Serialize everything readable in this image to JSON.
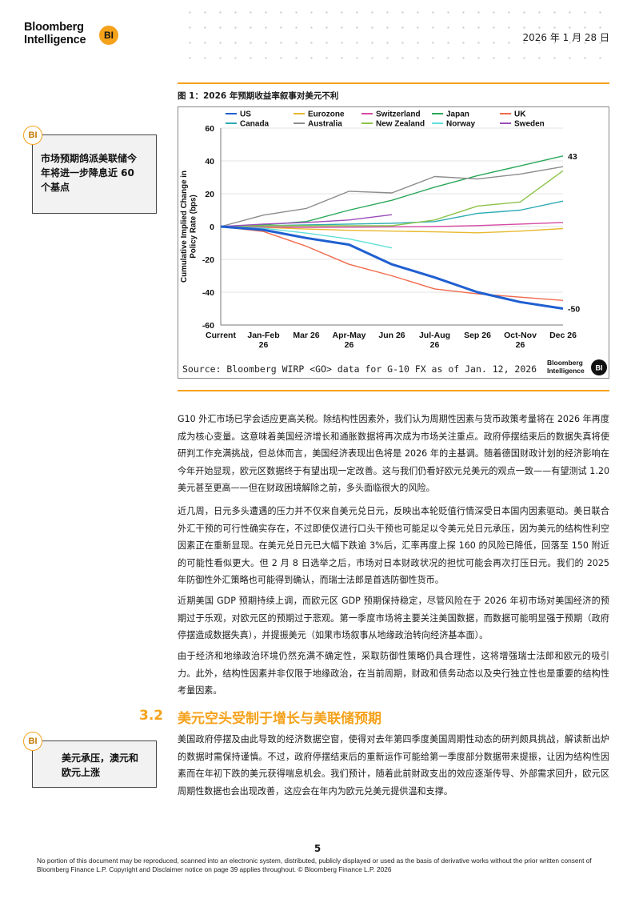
{
  "header": {
    "logo_line1": "Bloomberg",
    "logo_line2": "Intelligence",
    "logo_badge": "BI",
    "date": "2026 年 1 月 28 日"
  },
  "figure": {
    "title": "图 1：2026 年预期收益率叙事对美元不利",
    "source": "Source: Bloomberg WIRP <GO> data for G-10 FX as of Jan. 12, 2026",
    "brand_line1": "Bloomberg",
    "brand_line2": "Intelligence",
    "brand_badge": "BI"
  },
  "chart_data": {
    "type": "line",
    "title": "",
    "xlabel": "",
    "ylabel": "Cumulative Implied Change in Policy Rate (bps)",
    "ylim": [
      -60,
      60
    ],
    "yticks": [
      "60",
      "40",
      "20",
      "0",
      "-20",
      "-40",
      "-60"
    ],
    "categories": [
      "Current",
      "Jan-Feb 26",
      "Mar 26",
      "Apr-May 26",
      "Jun 26",
      "Jul-Aug 26",
      "Sep 26",
      "Oct-Nov 26",
      "Dec 26"
    ],
    "category_lines": [
      [
        "Current"
      ],
      [
        "Jan-Feb",
        "26"
      ],
      [
        "Mar 26"
      ],
      [
        "Apr-May",
        "26"
      ],
      [
        "Jun 26"
      ],
      [
        "Jul-Aug",
        "26"
      ],
      [
        "Sep 26"
      ],
      [
        "Oct-Nov",
        "26"
      ],
      [
        "Dec 26"
      ]
    ],
    "legend_position": "top",
    "series": [
      {
        "name": "US",
        "color": "#1f5fd1",
        "width": 3,
        "values": [
          0,
          -2,
          -7,
          -11,
          -23,
          -31,
          -40,
          -46,
          -50
        ],
        "end_label": "-50"
      },
      {
        "name": "Eurozone",
        "color": "#e8b830",
        "width": 1.4,
        "values": [
          0,
          -0.5,
          -1.5,
          -2.3,
          -2.8,
          -3.2,
          -3.8,
          -2.8,
          -1.2
        ]
      },
      {
        "name": "Switzerland",
        "color": "#d64aa4",
        "width": 1.4,
        "values": [
          0,
          -0.2,
          -0.5,
          -0.4,
          -0.2,
          0,
          0.6,
          1.5,
          2.5
        ]
      },
      {
        "name": "Japan",
        "color": "#2aa85a",
        "width": 1.4,
        "values": [
          0,
          1,
          3,
          10,
          16,
          24,
          31,
          37,
          43
        ],
        "end_label": "43"
      },
      {
        "name": "UK",
        "color": "#f06a4c",
        "width": 1.4,
        "values": [
          0,
          -3,
          -12,
          -23,
          -30,
          -38,
          -41,
          -43,
          -45
        ]
      },
      {
        "name": "Canada",
        "color": "#2cabb3",
        "width": 1.4,
        "values": [
          0,
          0.5,
          1,
          1.5,
          2,
          3,
          8,
          10,
          15.5
        ]
      },
      {
        "name": "Australia",
        "color": "#8c8c8c",
        "width": 1.4,
        "values": [
          0,
          7,
          11,
          21.5,
          20.5,
          30.5,
          29,
          32,
          36.5
        ]
      },
      {
        "name": "New Zealand",
        "color": "#8cc34a",
        "width": 1.4,
        "values": [
          0,
          0.5,
          0.5,
          0.5,
          0.5,
          4,
          12.5,
          15,
          34
        ]
      },
      {
        "name": "Norway",
        "color": "#5fe0d8",
        "width": 1.4,
        "values": [
          0,
          -1,
          -4,
          -7.5,
          -13,
          null,
          null,
          null,
          null
        ]
      },
      {
        "name": "Sweden",
        "color": "#9b4dba",
        "width": 1.4,
        "values": [
          0,
          1.5,
          2.5,
          4,
          7.2,
          null,
          null,
          null,
          null
        ]
      }
    ]
  },
  "sidebars": [
    {
      "tag": "BI",
      "lines": [
        "市场预期鸽派美联储今",
        "年将进一步降息近 60",
        "个基点"
      ]
    },
    {
      "tag": "BI",
      "lines": [
        "美元承压，澳元和",
        "欧元上涨"
      ]
    }
  ],
  "body": {
    "p1": "G10 外汇市场已学会适应更高关税。除结构性因素外，我们认为周期性因素与货币政策考量将在 2026 年再度成为核心变量。这意味着美国经济增长和通胀数据将再次成为市场关注重点。政府停摆结束后的数据失真将使研判工作充满挑战，但总体而言，美国经济表现出色将是 2026 年的主基调。随着德国财政计划的经济影响在今年开始显现，欧元区数据终于有望出现一定改善。这与我们仍看好欧元兑美元的观点一致——有望测试 1.20 美元甚至更高——但在财政困境解除之前，多头面临很大的风险。",
    "p2": "近几周，日元多头遭遇的压力并不仅来自美元兑日元，反映出本轮贬值行情深受日本国内因素驱动。美日联合外汇干预的可行性确实存在，不过即使仅进行口头干预也可能足以令美元兑日元承压，因为美元的结构性利空因素正在重新显现。在美元兑日元已大幅下跌逾 3%后，汇率再度上探 160 的风险已降低，回落至 150 附近的可能性看似更大。但 2 月 8 日选举之后，市场对日本财政状况的担忧可能会再次打压日元。我们的 2025 年防御性外汇策略也可能得到确认，而瑞士法郎是首选防御性货币。",
    "p3": "近期美国 GDP 预期持续上调，而欧元区 GDP 预期保持稳定，尽管风险在于 2026 年初市场对美国经济的预期过于乐观，对欧元区的预期过于悲观。第一季度市场将主要关注美国数据，而数据可能明显强于预期（政府停摆造成数据失真），并提振美元（如果市场叙事从地缘政治转向经济基本面）。",
    "p4": "由于经济和地缘政治环境仍然充满不确定性，采取防御性策略仍具合理性，这将增强瑞士法郎和欧元的吸引力。此外，结构性因素并非仅限于地缘政治，在当前周期，财政和债务动态以及央行独立性也是重要的结构性考量因素。",
    "section_number": "3.2",
    "section_title": "美元空头受制于增长与美联储预期",
    "p5": "美国政府停摆及由此导致的经济数据空窗，使得对去年第四季度美国周期性动态的研判颇具挑战，解读新出炉的数据时需保持谨慎。不过，政府停摆结束后的重新运作可能给第一季度部分数据带来提振，让因为结构性因素而在年初下跌的美元获得喘息机会。我们预计，随着此前財政支出的效应逐渐传导、外部需求回升，欧元区周期性数据也会出现改善，这应会在年内为欧元兑美元提供温和支撑。"
  },
  "footer": {
    "page_number": "5",
    "disclaimer": "No portion of this document may be reproduced, scanned into an electronic system, distributed, publicly displayed or used as the basis of derivative works without the prior written consent of Bloomberg Finance L.P. Copyright and Disclaimer notice on page 39 applies throughout. © Bloomberg Finance L.P. 2026"
  }
}
